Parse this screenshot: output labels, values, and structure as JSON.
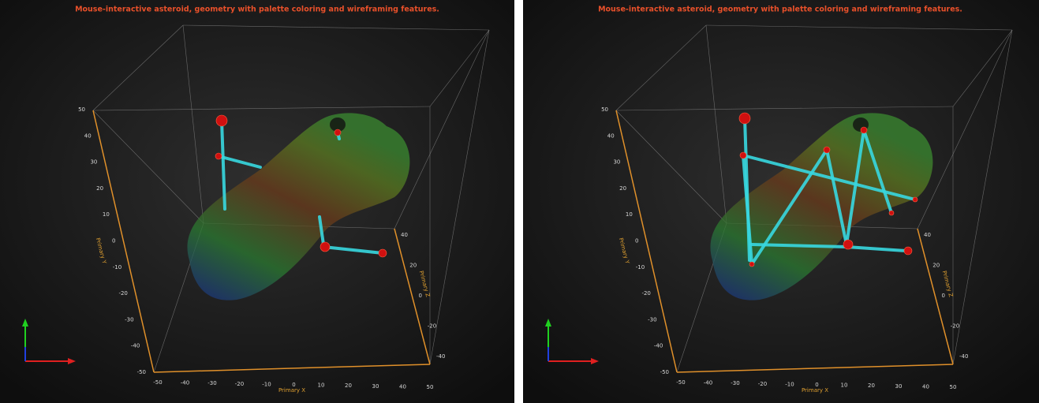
{
  "panels": [
    {
      "title": "Mouse-interactive asteroid, geometry with palette coloring and wireframing features.",
      "x_axis": {
        "title": "Primary X",
        "ticks": [
          -50,
          -40,
          -30,
          -20,
          -10,
          0,
          10,
          20,
          30,
          40,
          50
        ]
      },
      "y_axis": {
        "title": "Primary Y",
        "ticks": [
          50,
          40,
          30,
          20,
          10,
          0,
          -10,
          -20,
          -30,
          -40,
          -50
        ]
      },
      "z_axis": {
        "title": "Primary Z",
        "ticks": [
          40,
          20,
          0,
          -20,
          -40
        ]
      }
    },
    {
      "title": "Mouse-interactive asteroid, geometry with palette coloring and wireframing features.",
      "x_axis": {
        "title": "Primary X",
        "ticks": [
          -50,
          -40,
          -30,
          -20,
          -10,
          0,
          10,
          20,
          30,
          40,
          50
        ]
      },
      "y_axis": {
        "title": "Primary Y",
        "ticks": [
          50,
          40,
          30,
          20,
          10,
          0,
          -10,
          -20,
          -30,
          -40,
          -50
        ]
      },
      "z_axis": {
        "title": "Primary Z",
        "ticks": [
          40,
          20,
          0,
          -20,
          -40
        ]
      }
    }
  ]
}
